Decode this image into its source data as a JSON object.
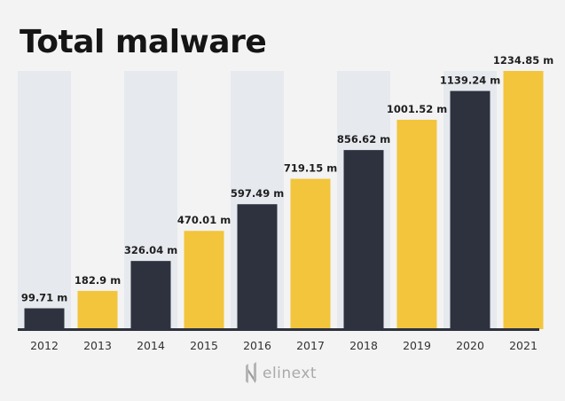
{
  "chart_data": {
    "type": "bar",
    "title": "Total malware",
    "categories": [
      "2012",
      "2013",
      "2014",
      "2015",
      "2016",
      "2017",
      "2018",
      "2019",
      "2020",
      "2021"
    ],
    "values": [
      99.71,
      182.9,
      326.04,
      470.01,
      597.49,
      719.15,
      856.62,
      1001.52,
      1139.24,
      1234.85
    ],
    "data_labels": [
      "99.71 m",
      "182.9 m",
      "326.04 m",
      "470.01 m",
      "597.49 m",
      "719.15 m",
      "856.62 m",
      "1001.52 m",
      "1139.24 m",
      "1234.85 m"
    ],
    "unit": "m",
    "xlabel": "",
    "ylabel": "",
    "ylim": [
      0,
      1234.85
    ],
    "grid": false,
    "colors": {
      "dark": "#2d323e",
      "yellow": "#f2c53d",
      "band": "#e6e9ee",
      "axis": "#2d323e"
    }
  },
  "brand": {
    "logo_text": "elinext"
  }
}
